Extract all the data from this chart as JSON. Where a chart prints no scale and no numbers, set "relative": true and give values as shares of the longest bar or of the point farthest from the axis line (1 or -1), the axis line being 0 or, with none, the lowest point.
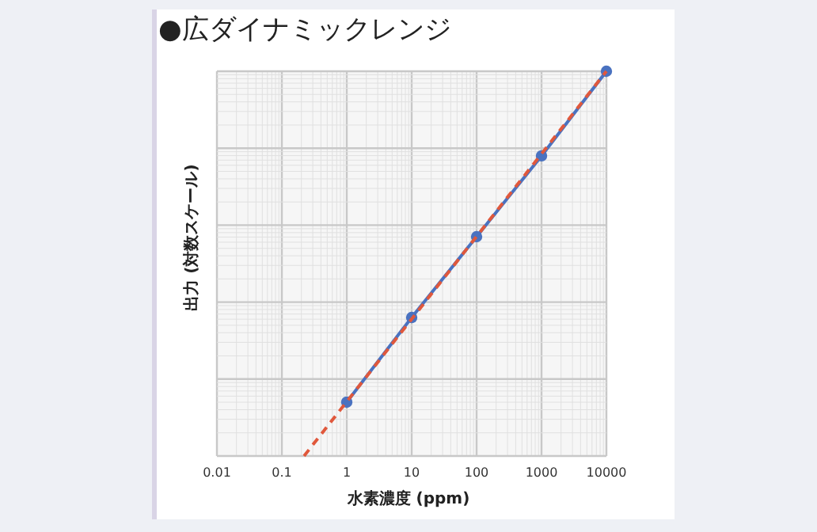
{
  "chart_data": {
    "type": "line",
    "title": "●広ダイナミックレンジ",
    "xlabel": "水素濃度 (ppm)",
    "ylabel": "出力 (対数スケール)",
    "log": "x",
    "relative": true,
    "xlim": [
      0.01,
      10000
    ],
    "xticks": [
      0.01,
      0.1,
      1,
      10,
      100,
      1000,
      10000
    ],
    "grid": true,
    "series": [
      {
        "type": "line",
        "color": "#4a72c0",
        "x": [
          1,
          10,
          100,
          1000,
          10000
        ],
        "values": [
          0.14,
          0.36,
          0.57,
          0.78,
          1
        ],
        "marker": "circle",
        "line_style": "solid"
      },
      {
        "type": "line",
        "color": "#e0583c",
        "x": [
          0.22,
          10000
        ],
        "values": [
          0,
          1
        ],
        "marker": "none",
        "line_style": "dashed"
      }
    ]
  }
}
